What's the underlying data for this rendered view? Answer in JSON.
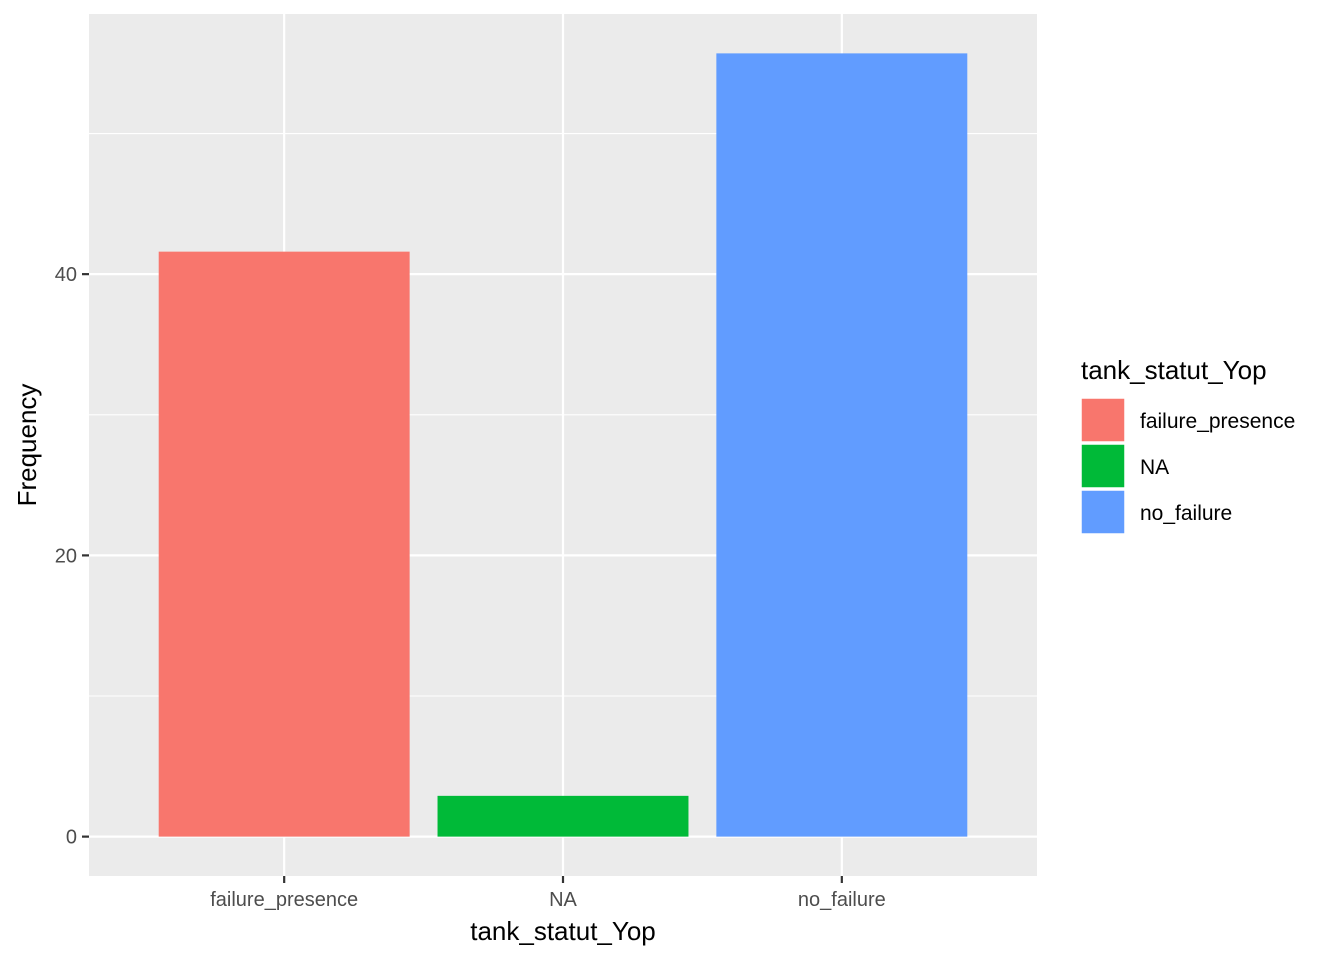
{
  "chart_data": {
    "type": "bar",
    "categories": [
      "failure_presence",
      "NA",
      "no_failure"
    ],
    "values": [
      41.6,
      2.9,
      55.7
    ],
    "colors": [
      "#F8766D",
      "#00BA38",
      "#619CFF"
    ],
    "xlabel": "tank_statut_Yop",
    "ylabel": "Frequency",
    "ylim": [
      -2.8,
      58.5
    ],
    "yticks": [
      0,
      20,
      40
    ],
    "grid": true,
    "panel_background": "#EBEBEB",
    "grid_color": "#FFFFFF",
    "legend": {
      "title": "tank_statut_Yop",
      "position": "right",
      "entries": [
        "failure_presence",
        "NA",
        "no_failure"
      ]
    }
  }
}
